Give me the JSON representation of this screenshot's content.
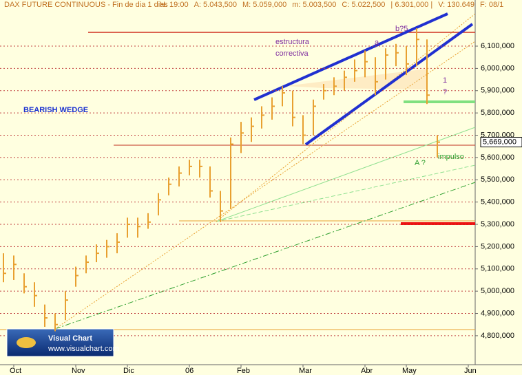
{
  "chart_data": {
    "type": "ohlc",
    "title": "DAX FUTURE CONTINUOUS - Fin de dia 1 dias",
    "header_fields": [
      "H: 19:00",
      "A: 5.043,500",
      "M: 5.059,000",
      "m: 5.003,500",
      "C: 5.022,500",
      "| 6.301,000 |",
      "V: 130.649",
      "F: 08/1"
    ],
    "categories": [
      null,
      "Oct",
      null,
      null,
      null,
      null,
      null,
      "Nov",
      null,
      null,
      null,
      null,
      "Dic",
      null,
      null,
      null,
      null,
      null,
      "06",
      null,
      null,
      null,
      null,
      "Feb",
      null,
      null,
      null,
      null,
      null,
      "Mar",
      null,
      null,
      null,
      null,
      null,
      "Abr",
      null,
      null,
      null,
      "May",
      null,
      null,
      null,
      null,
      null,
      "Jun"
    ],
    "high": [
      5170000,
      5160000,
      5080000,
      5040000,
      4940000,
      4900000,
      5000000,
      5110000,
      5160000,
      5210000,
      5230000,
      5260000,
      5330000,
      5330000,
      5350000,
      5440000,
      5510000,
      5560000,
      5590000,
      5590000,
      5560000,
      5450000,
      5690000,
      5760000,
      5780000,
      5830000,
      5870000,
      5920000,
      5900000,
      5790000,
      5860000,
      5930000,
      5960000,
      5990000,
      6040000,
      6080000,
      6050000,
      6090000,
      6110000,
      6100000,
      6180000,
      6130000,
      5700000,
      null,
      null,
      null
    ],
    "low": [
      5040000,
      5050000,
      4990000,
      4930000,
      4840000,
      4820000,
      4870000,
      5020000,
      5080000,
      5130000,
      5150000,
      5170000,
      5240000,
      5240000,
      5280000,
      5340000,
      5430000,
      5470000,
      5520000,
      5510000,
      5420000,
      5310000,
      5370000,
      5620000,
      5670000,
      5730000,
      5770000,
      5830000,
      5740000,
      5660000,
      5700000,
      5860000,
      5880000,
      5900000,
      5940000,
      5960000,
      5880000,
      5950000,
      6010000,
      5970000,
      6010000,
      5840000,
      5600000,
      null,
      null,
      null
    ],
    "close": [
      5080000,
      5120000,
      5020000,
      4980000,
      4880000,
      4850000,
      4960000,
      5070000,
      5130000,
      5170000,
      5200000,
      5220000,
      5300000,
      5290000,
      5310000,
      5410000,
      5480000,
      5530000,
      5560000,
      5560000,
      5450000,
      5360000,
      5660000,
      5710000,
      5740000,
      5790000,
      5830000,
      5890000,
      5780000,
      5700000,
      5830000,
      5900000,
      5920000,
      5960000,
      5990000,
      6030000,
      5940000,
      6060000,
      6070000,
      6020000,
      6130000,
      5880000,
      5669000,
      null,
      null,
      null
    ],
    "color": "#e8a030",
    "last_price": {
      "value": 5669000,
      "label": "5,669,000"
    },
    "ylim": [
      4670000,
      6307000
    ],
    "yticks": [
      {
        "value": 4800000,
        "label": "4,800,000"
      },
      {
        "value": 4900000,
        "label": "4,900,000"
      },
      {
        "value": 5000000,
        "label": "5,000,000"
      },
      {
        "value": 5100000,
        "label": "5,100,000"
      },
      {
        "value": 5200000,
        "label": "5,200,000"
      },
      {
        "value": 5300000,
        "label": "5,300,000"
      },
      {
        "value": 5400000,
        "label": "5,400,000"
      },
      {
        "value": 5500000,
        "label": "5,500,000"
      },
      {
        "value": 5600000,
        "label": "5,600,000"
      },
      {
        "value": 5700000,
        "label": "5,700,000"
      },
      {
        "value": 5800000,
        "label": "5,800,000"
      },
      {
        "value": 5900000,
        "label": "5,900,000"
      },
      {
        "value": 6000000,
        "label": "6,000,000"
      },
      {
        "value": 6100000,
        "label": "6,100,000"
      }
    ],
    "grid": true,
    "annotations": {
      "pattern": "BEARISH WEDGE",
      "structure_1": "estructura",
      "structure_2": "correctiva",
      "wave_a": "a",
      "wave_b": "b?5",
      "wave_1": "1",
      "wave_1_q": "?",
      "wave_A": "A ?",
      "impulse": "impulso"
    },
    "logo": {
      "name": "Visual Chart",
      "url": "www.visualchart.com"
    }
  }
}
